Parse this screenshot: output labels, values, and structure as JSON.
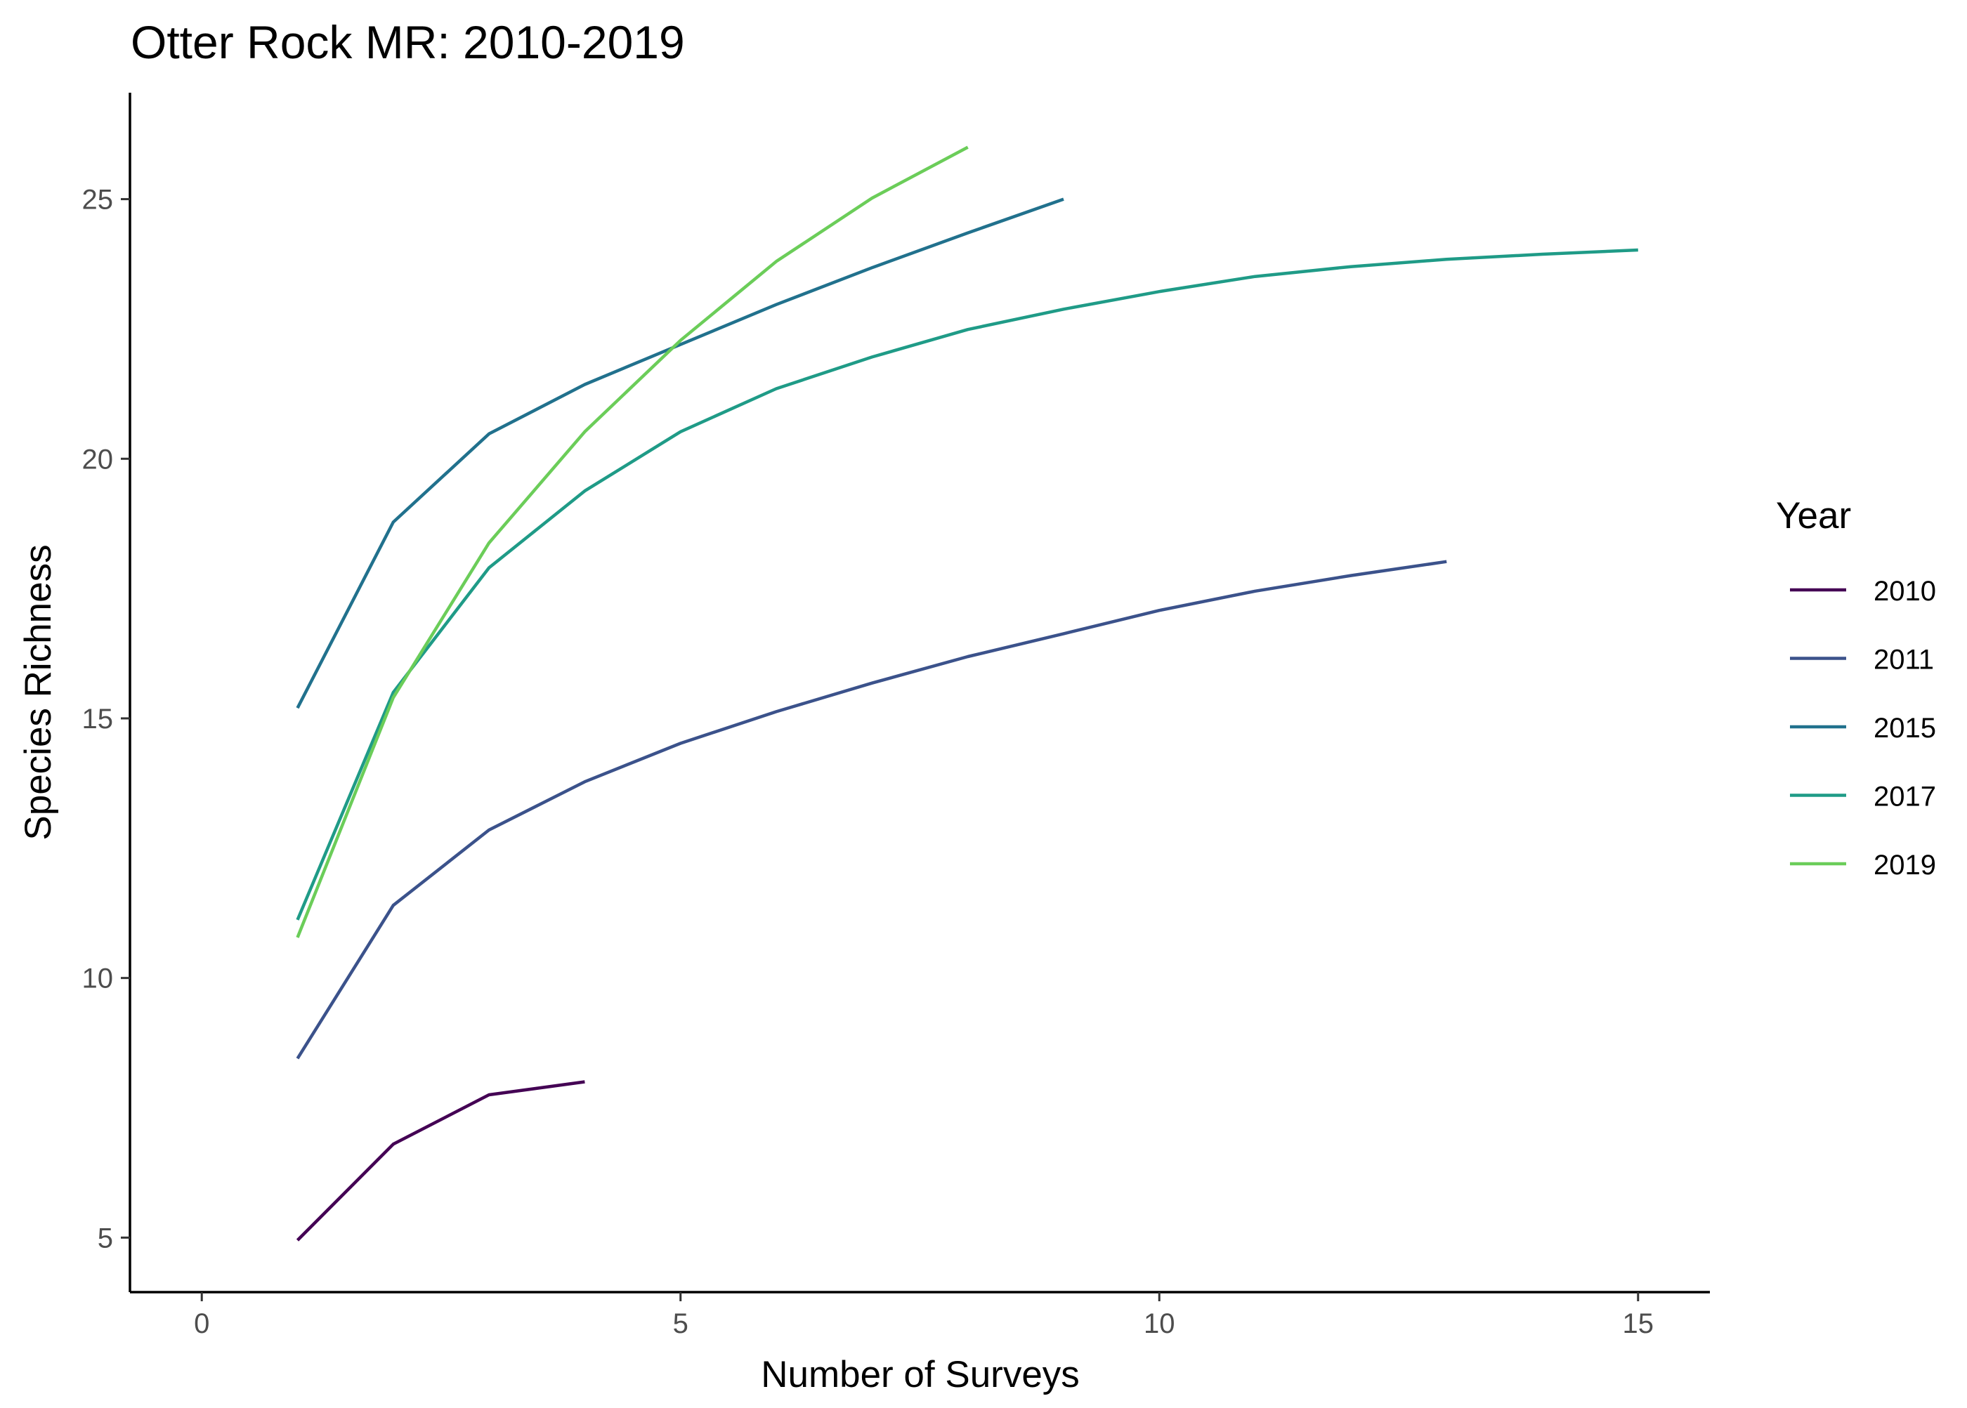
{
  "chart_data": {
    "type": "line",
    "title": "Otter Rock MR: 2010-2019",
    "xlabel": "Number of Surveys",
    "ylabel": "Species Richness",
    "xlim": [
      -0.75,
      15.75
    ],
    "ylim": [
      3.95,
      27.05
    ],
    "x_ticks": [
      0,
      5,
      10,
      15
    ],
    "y_ticks": [
      5,
      10,
      15,
      20,
      25
    ],
    "grid": false,
    "legend": {
      "title": "Year",
      "position": "right"
    },
    "series": [
      {
        "name": "2010",
        "color": "#440154",
        "x": [
          1,
          2,
          3,
          4
        ],
        "y": [
          4.95,
          6.8,
          7.75,
          8.0
        ]
      },
      {
        "name": "2011",
        "color": "#3b528b",
        "x": [
          1,
          2,
          3,
          4,
          5,
          6,
          7,
          8,
          9,
          10,
          11,
          12,
          13
        ],
        "y": [
          8.45,
          11.4,
          12.85,
          13.78,
          14.52,
          15.13,
          15.68,
          16.19,
          16.63,
          17.08,
          17.45,
          17.75,
          18.02
        ]
      },
      {
        "name": "2015",
        "color": "#21718d",
        "x": [
          1,
          2,
          3,
          4,
          5,
          6,
          7,
          8,
          9
        ],
        "y": [
          15.2,
          18.78,
          20.48,
          21.43,
          22.2,
          22.97,
          23.68,
          24.35,
          25.0
        ]
      },
      {
        "name": "2017",
        "color": "#1f9b87",
        "x": [
          1,
          2,
          3,
          4,
          5,
          6,
          7,
          8,
          9,
          10,
          11,
          12,
          13,
          14,
          15
        ],
        "y": [
          11.12,
          15.5,
          17.9,
          19.38,
          20.52,
          21.35,
          21.96,
          22.49,
          22.88,
          23.22,
          23.51,
          23.7,
          23.84,
          23.94,
          24.02
        ]
      },
      {
        "name": "2019",
        "color": "#6bcd59",
        "x": [
          1,
          2,
          3,
          4,
          5,
          6,
          7,
          8
        ],
        "y": [
          10.78,
          15.4,
          18.38,
          20.52,
          22.28,
          23.8,
          25.02,
          26.0
        ]
      }
    ]
  }
}
